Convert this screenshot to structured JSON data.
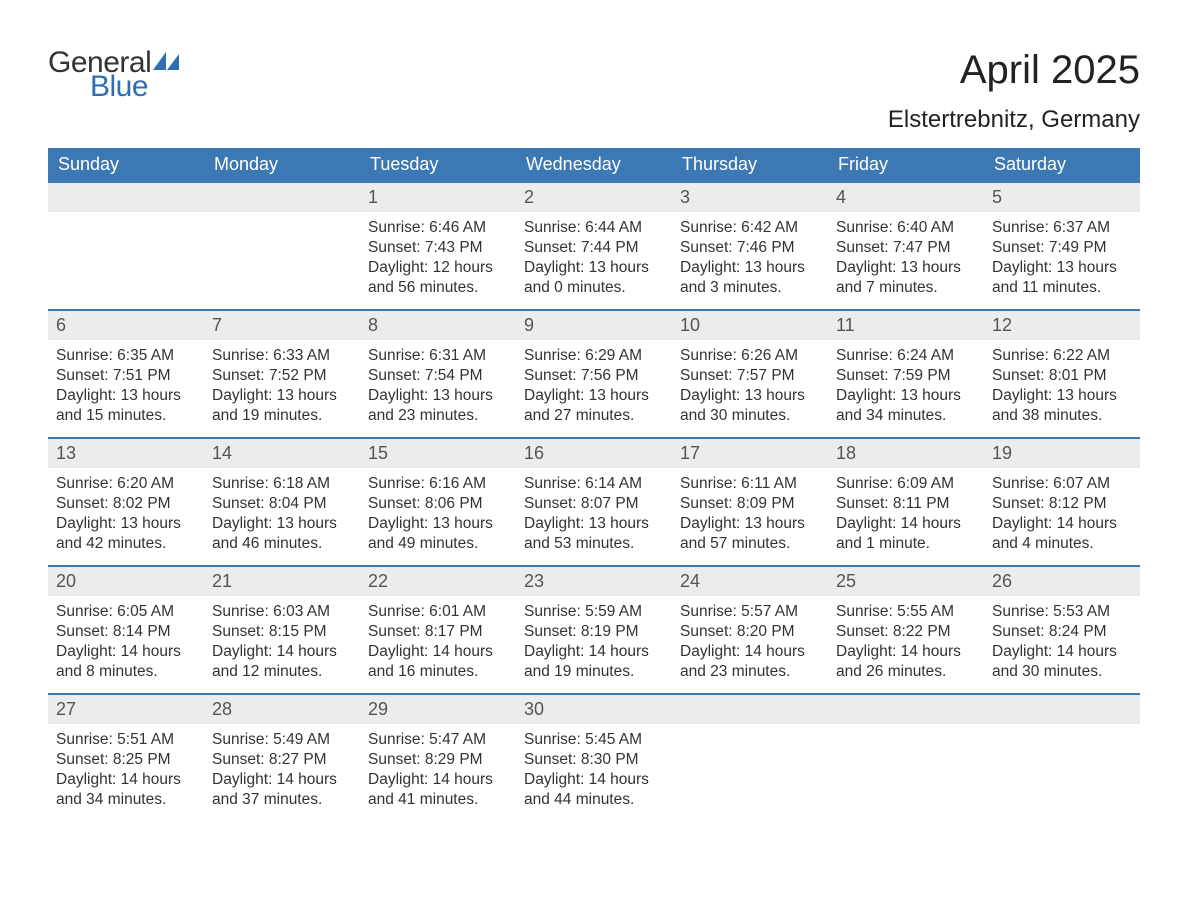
{
  "logo": {
    "line1": "General",
    "line2": "Blue",
    "line1_color": "#333333",
    "line2_color": "#2f6eb0"
  },
  "title": "April 2025",
  "location": "Elstertrebnitz, Germany",
  "colors": {
    "header_bg": "#3c78b4",
    "header_text": "#ffffff",
    "daynum_bg": "#ececec",
    "row_border": "#3c78b4",
    "body_text": "#333333",
    "page_bg": "#ffffff"
  },
  "fonts": {
    "title_size_pt": 40,
    "location_size_pt": 24,
    "header_size_pt": 18,
    "body_size_pt": 15.5
  },
  "calendar": {
    "columns": [
      "Sunday",
      "Monday",
      "Tuesday",
      "Wednesday",
      "Thursday",
      "Friday",
      "Saturday"
    ],
    "weeks": [
      [
        null,
        null,
        {
          "day": "1",
          "sunrise": "Sunrise: 6:46 AM",
          "sunset": "Sunset: 7:43 PM",
          "dl1": "Daylight: 12 hours",
          "dl2": "and 56 minutes."
        },
        {
          "day": "2",
          "sunrise": "Sunrise: 6:44 AM",
          "sunset": "Sunset: 7:44 PM",
          "dl1": "Daylight: 13 hours",
          "dl2": "and 0 minutes."
        },
        {
          "day": "3",
          "sunrise": "Sunrise: 6:42 AM",
          "sunset": "Sunset: 7:46 PM",
          "dl1": "Daylight: 13 hours",
          "dl2": "and 3 minutes."
        },
        {
          "day": "4",
          "sunrise": "Sunrise: 6:40 AM",
          "sunset": "Sunset: 7:47 PM",
          "dl1": "Daylight: 13 hours",
          "dl2": "and 7 minutes."
        },
        {
          "day": "5",
          "sunrise": "Sunrise: 6:37 AM",
          "sunset": "Sunset: 7:49 PM",
          "dl1": "Daylight: 13 hours",
          "dl2": "and 11 minutes."
        }
      ],
      [
        {
          "day": "6",
          "sunrise": "Sunrise: 6:35 AM",
          "sunset": "Sunset: 7:51 PM",
          "dl1": "Daylight: 13 hours",
          "dl2": "and 15 minutes."
        },
        {
          "day": "7",
          "sunrise": "Sunrise: 6:33 AM",
          "sunset": "Sunset: 7:52 PM",
          "dl1": "Daylight: 13 hours",
          "dl2": "and 19 minutes."
        },
        {
          "day": "8",
          "sunrise": "Sunrise: 6:31 AM",
          "sunset": "Sunset: 7:54 PM",
          "dl1": "Daylight: 13 hours",
          "dl2": "and 23 minutes."
        },
        {
          "day": "9",
          "sunrise": "Sunrise: 6:29 AM",
          "sunset": "Sunset: 7:56 PM",
          "dl1": "Daylight: 13 hours",
          "dl2": "and 27 minutes."
        },
        {
          "day": "10",
          "sunrise": "Sunrise: 6:26 AM",
          "sunset": "Sunset: 7:57 PM",
          "dl1": "Daylight: 13 hours",
          "dl2": "and 30 minutes."
        },
        {
          "day": "11",
          "sunrise": "Sunrise: 6:24 AM",
          "sunset": "Sunset: 7:59 PM",
          "dl1": "Daylight: 13 hours",
          "dl2": "and 34 minutes."
        },
        {
          "day": "12",
          "sunrise": "Sunrise: 6:22 AM",
          "sunset": "Sunset: 8:01 PM",
          "dl1": "Daylight: 13 hours",
          "dl2": "and 38 minutes."
        }
      ],
      [
        {
          "day": "13",
          "sunrise": "Sunrise: 6:20 AM",
          "sunset": "Sunset: 8:02 PM",
          "dl1": "Daylight: 13 hours",
          "dl2": "and 42 minutes."
        },
        {
          "day": "14",
          "sunrise": "Sunrise: 6:18 AM",
          "sunset": "Sunset: 8:04 PM",
          "dl1": "Daylight: 13 hours",
          "dl2": "and 46 minutes."
        },
        {
          "day": "15",
          "sunrise": "Sunrise: 6:16 AM",
          "sunset": "Sunset: 8:06 PM",
          "dl1": "Daylight: 13 hours",
          "dl2": "and 49 minutes."
        },
        {
          "day": "16",
          "sunrise": "Sunrise: 6:14 AM",
          "sunset": "Sunset: 8:07 PM",
          "dl1": "Daylight: 13 hours",
          "dl2": "and 53 minutes."
        },
        {
          "day": "17",
          "sunrise": "Sunrise: 6:11 AM",
          "sunset": "Sunset: 8:09 PM",
          "dl1": "Daylight: 13 hours",
          "dl2": "and 57 minutes."
        },
        {
          "day": "18",
          "sunrise": "Sunrise: 6:09 AM",
          "sunset": "Sunset: 8:11 PM",
          "dl1": "Daylight: 14 hours",
          "dl2": "and 1 minute."
        },
        {
          "day": "19",
          "sunrise": "Sunrise: 6:07 AM",
          "sunset": "Sunset: 8:12 PM",
          "dl1": "Daylight: 14 hours",
          "dl2": "and 4 minutes."
        }
      ],
      [
        {
          "day": "20",
          "sunrise": "Sunrise: 6:05 AM",
          "sunset": "Sunset: 8:14 PM",
          "dl1": "Daylight: 14 hours",
          "dl2": "and 8 minutes."
        },
        {
          "day": "21",
          "sunrise": "Sunrise: 6:03 AM",
          "sunset": "Sunset: 8:15 PM",
          "dl1": "Daylight: 14 hours",
          "dl2": "and 12 minutes."
        },
        {
          "day": "22",
          "sunrise": "Sunrise: 6:01 AM",
          "sunset": "Sunset: 8:17 PM",
          "dl1": "Daylight: 14 hours",
          "dl2": "and 16 minutes."
        },
        {
          "day": "23",
          "sunrise": "Sunrise: 5:59 AM",
          "sunset": "Sunset: 8:19 PM",
          "dl1": "Daylight: 14 hours",
          "dl2": "and 19 minutes."
        },
        {
          "day": "24",
          "sunrise": "Sunrise: 5:57 AM",
          "sunset": "Sunset: 8:20 PM",
          "dl1": "Daylight: 14 hours",
          "dl2": "and 23 minutes."
        },
        {
          "day": "25",
          "sunrise": "Sunrise: 5:55 AM",
          "sunset": "Sunset: 8:22 PM",
          "dl1": "Daylight: 14 hours",
          "dl2": "and 26 minutes."
        },
        {
          "day": "26",
          "sunrise": "Sunrise: 5:53 AM",
          "sunset": "Sunset: 8:24 PM",
          "dl1": "Daylight: 14 hours",
          "dl2": "and 30 minutes."
        }
      ],
      [
        {
          "day": "27",
          "sunrise": "Sunrise: 5:51 AM",
          "sunset": "Sunset: 8:25 PM",
          "dl1": "Daylight: 14 hours",
          "dl2": "and 34 minutes."
        },
        {
          "day": "28",
          "sunrise": "Sunrise: 5:49 AM",
          "sunset": "Sunset: 8:27 PM",
          "dl1": "Daylight: 14 hours",
          "dl2": "and 37 minutes."
        },
        {
          "day": "29",
          "sunrise": "Sunrise: 5:47 AM",
          "sunset": "Sunset: 8:29 PM",
          "dl1": "Daylight: 14 hours",
          "dl2": "and 41 minutes."
        },
        {
          "day": "30",
          "sunrise": "Sunrise: 5:45 AM",
          "sunset": "Sunset: 8:30 PM",
          "dl1": "Daylight: 14 hours",
          "dl2": "and 44 minutes."
        },
        null,
        null,
        null
      ]
    ]
  }
}
